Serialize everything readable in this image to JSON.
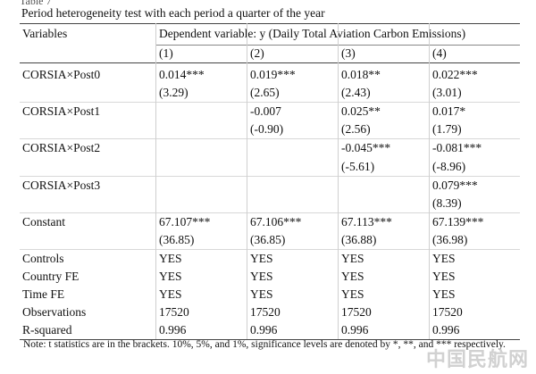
{
  "table_label": "Table 7",
  "caption": "Period heterogeneity test with each period a quarter of the year",
  "header": {
    "variables": "Variables",
    "dependent": "Dependent variable: y (Daily Total Aviation Carbon Emissions)",
    "columns": [
      "(1)",
      "(2)",
      "(3)",
      "(4)"
    ]
  },
  "rows": [
    {
      "label": "CORSIA×Post0",
      "vals": [
        "0.014***",
        "0.019***",
        "0.018**",
        "0.022***"
      ]
    },
    {
      "label": "",
      "vals": [
        "(3.29)",
        "(2.65)",
        "(2.43)",
        "(3.01)"
      ]
    },
    {
      "label": "CORSIA×Post1",
      "vals": [
        "",
        "-0.007",
        "0.025**",
        "0.017*"
      ]
    },
    {
      "label": "",
      "vals": [
        "",
        "(-0.90)",
        "(2.56)",
        "(1.79)"
      ]
    },
    {
      "label": "CORSIA×Post2",
      "vals": [
        "",
        "",
        "-0.045***",
        "-0.081***"
      ]
    },
    {
      "label": "",
      "vals": [
        "",
        "",
        "(-5.61)",
        "(-8.96)"
      ]
    },
    {
      "label": "CORSIA×Post3",
      "vals": [
        "",
        "",
        "",
        "0.079***"
      ]
    },
    {
      "label": "",
      "vals": [
        "",
        "",
        "",
        "(8.39)"
      ]
    },
    {
      "label": "Constant",
      "vals": [
        "67.107***",
        "67.106***",
        "67.113***",
        "67.139***"
      ]
    },
    {
      "label": "",
      "vals": [
        "(36.85)",
        "(36.85)",
        "(36.88)",
        "(36.98)"
      ]
    },
    {
      "label": "Controls",
      "vals": [
        "YES",
        "YES",
        "YES",
        "YES"
      ]
    },
    {
      "label": "Country FE",
      "vals": [
        "YES",
        "YES",
        "YES",
        "YES"
      ]
    },
    {
      "label": "Time FE",
      "vals": [
        "YES",
        "YES",
        "YES",
        "YES"
      ]
    },
    {
      "label": "Observations",
      "vals": [
        "17520",
        "17520",
        "17520",
        "17520"
      ]
    },
    {
      "label": "R-squared",
      "vals": [
        "0.996",
        "0.996",
        "0.996",
        "0.996"
      ]
    }
  ],
  "note": "Note: t statistics are in the brackets. 10%, 5%, and 1%, significance levels are denoted by *, **, and *** respectively.",
  "watermark": "中国民航网"
}
